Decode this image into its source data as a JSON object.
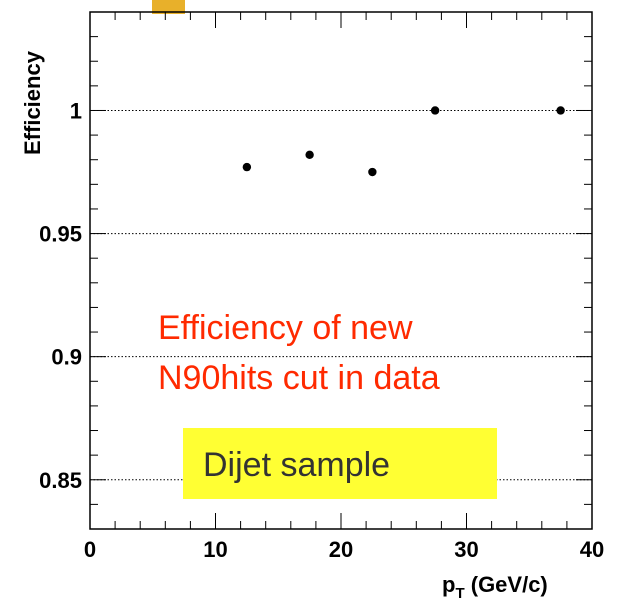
{
  "chart_data": {
    "type": "scatter",
    "title": "",
    "xlabel": "p",
    "xlabel_subscript": "T",
    "xlabel_unit": " (GeV/c)",
    "ylabel": "Efficiency",
    "xlim": [
      0,
      40
    ],
    "ylim": [
      0.83,
      1.04
    ],
    "x_major_ticks": [
      0,
      10,
      20,
      30,
      40
    ],
    "x_tick_labels": [
      "0",
      "10",
      "20",
      "30",
      "40"
    ],
    "y_major_ticks": [
      0.85,
      0.9,
      0.95,
      1
    ],
    "y_tick_labels": [
      "0.85",
      "0.9",
      "0.95",
      "1"
    ],
    "grid": "horizontal dotted at major y ticks",
    "series": [
      {
        "x": [
          12.5,
          17.5,
          22.5,
          27.5,
          37.5
        ],
        "y": [
          0.977,
          0.982,
          0.975,
          1.0,
          1.0
        ],
        "color": "#000000"
      }
    ],
    "annotations": {
      "red_text_line1": "Efficiency of new",
      "red_text_line2": "N90hits cut in data",
      "red_color": "#ff2a00",
      "box_text": "Dijet sample",
      "box_color": "#ffff33"
    }
  }
}
